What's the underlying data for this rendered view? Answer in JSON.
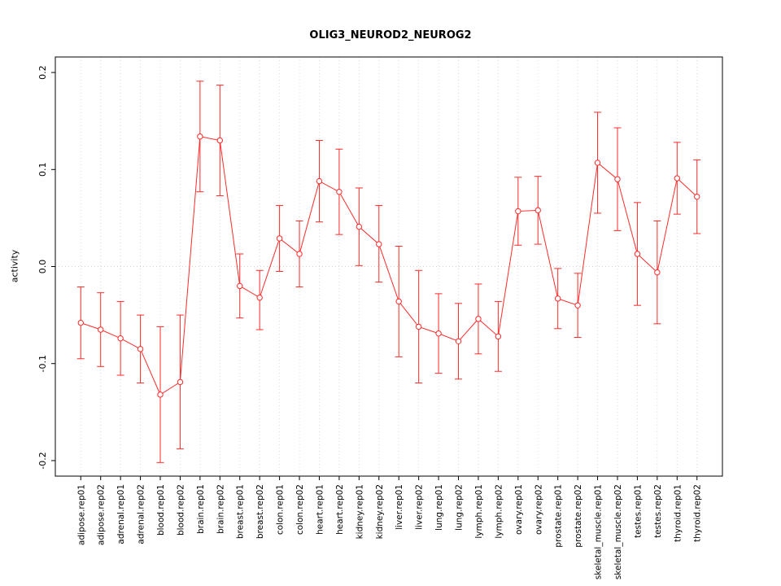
{
  "title": "OLIG3_NEUROD2_NEUROG2",
  "colors": {
    "series": "#ff2a2a",
    "grid": "#d9d9d9",
    "zero_line": "#cfcfcf",
    "box": "#000000",
    "text": "#000000",
    "point_fill": "#ffffff",
    "background": "#ffffff"
  },
  "chart_data": {
    "type": "line",
    "title": "OLIG3_NEUROD2_NEUROG2",
    "xlabel": "",
    "ylabel": "activity",
    "ylim": [
      -0.2,
      0.2
    ],
    "ytick_values": [
      -0.2,
      -0.1,
      0.0,
      0.1,
      0.2
    ],
    "ytick_labels": [
      "-0.2",
      "-0.1",
      "0.0",
      "0.1",
      "0.2"
    ],
    "grid": "dotted vertical gridline per category, dotted horizontal line at y=0",
    "legend": "none",
    "marker": "open-circle",
    "error_bars": true,
    "categories": [
      "adipose.rep01",
      "adipose.rep02",
      "adrenal.rep01",
      "adrenal.rep02",
      "blood.rep01",
      "blood.rep02",
      "brain.rep01",
      "brain.rep02",
      "breast.rep01",
      "breast.rep02",
      "colon.rep01",
      "colon.rep02",
      "heart.rep01",
      "heart.rep02",
      "kidney.rep01",
      "kidney.rep02",
      "liver.rep01",
      "liver.rep02",
      "lung.rep01",
      "lung.rep02",
      "lymph.rep01",
      "lymph.rep02",
      "ovary.rep01",
      "ovary.rep02",
      "prostate.rep01",
      "prostate.rep02",
      "skeletal_muscle.rep01",
      "skeletal_muscle.rep02",
      "testes.rep01",
      "testes.rep02",
      "thyroid.rep01",
      "thyroid.rep02"
    ],
    "values": [
      -0.058,
      -0.065,
      -0.074,
      -0.085,
      -0.132,
      -0.119,
      0.134,
      0.13,
      -0.02,
      -0.032,
      0.029,
      0.013,
      0.088,
      0.077,
      0.041,
      0.023,
      -0.036,
      -0.062,
      -0.069,
      -0.077,
      -0.054,
      -0.072,
      0.057,
      0.058,
      -0.033,
      -0.04,
      0.107,
      0.09,
      0.013,
      -0.006,
      0.091,
      0.072
    ],
    "error_low": [
      -0.095,
      -0.103,
      -0.112,
      -0.12,
      -0.202,
      -0.188,
      0.077,
      0.073,
      -0.053,
      -0.065,
      -0.005,
      -0.021,
      0.046,
      0.033,
      0.001,
      -0.016,
      -0.093,
      -0.12,
      -0.11,
      -0.116,
      -0.09,
      -0.108,
      0.022,
      0.023,
      -0.064,
      -0.073,
      0.055,
      0.037,
      -0.04,
      -0.059,
      0.054,
      0.034
    ],
    "error_high": [
      -0.021,
      -0.027,
      -0.036,
      -0.05,
      -0.062,
      -0.05,
      0.191,
      0.187,
      0.013,
      -0.004,
      0.063,
      0.047,
      0.13,
      0.121,
      0.081,
      0.063,
      0.021,
      -0.004,
      -0.028,
      -0.038,
      -0.018,
      -0.036,
      0.092,
      0.093,
      -0.002,
      -0.007,
      0.159,
      0.143,
      0.066,
      0.047,
      0.128,
      0.11
    ]
  }
}
